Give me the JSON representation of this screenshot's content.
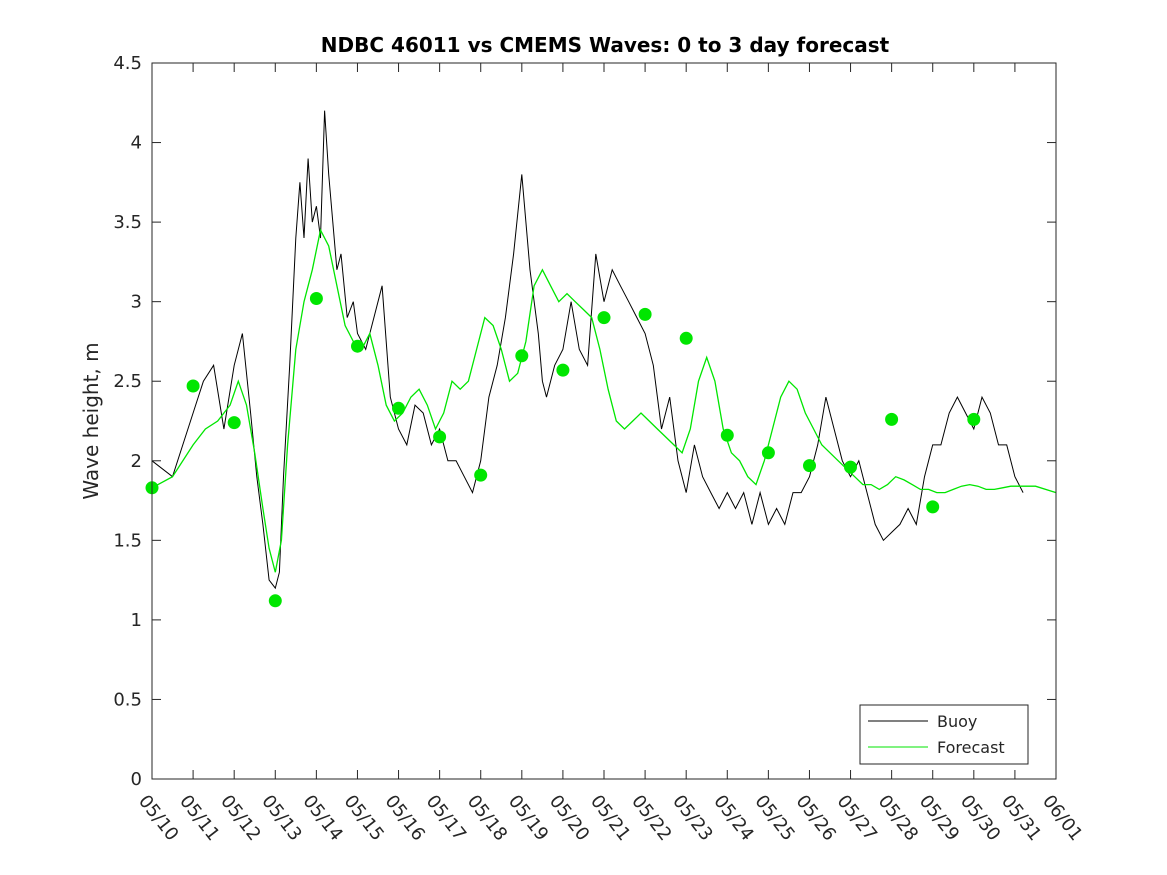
{
  "chart_data": {
    "type": "line",
    "title": "NDBC 46011 vs CMEMS Waves: 0 to 3 day forecast",
    "xlabel": "",
    "ylabel": "Wave height, m",
    "xlim": [
      "05/10",
      "06/01"
    ],
    "ylim": [
      0,
      4.5
    ],
    "x_tick_labels": [
      "05/10",
      "05/11",
      "05/12",
      "05/13",
      "05/14",
      "05/15",
      "05/16",
      "05/17",
      "05/18",
      "05/19",
      "05/20",
      "05/21",
      "05/22",
      "05/23",
      "05/24",
      "05/25",
      "05/26",
      "05/27",
      "05/28",
      "05/29",
      "05/30",
      "05/31",
      "06/01"
    ],
    "y_tick_values": [
      0,
      0.5,
      1,
      1.5,
      2,
      2.5,
      3,
      3.5,
      4,
      4.5
    ],
    "y_tick_labels": [
      "0",
      "0.5",
      "1",
      "1.5",
      "2",
      "2.5",
      "3",
      "3.5",
      "4",
      "4.5"
    ],
    "grid": false,
    "legend_position": "bottom-right",
    "colors": {
      "buoy": "#000000",
      "forecast": "#00e600",
      "axis": "#262626"
    },
    "series": [
      {
        "name": "Buoy",
        "x_days": [
          0,
          0.5,
          1,
          1.25,
          1.5,
          1.75,
          2,
          2.2,
          2.4,
          2.55,
          2.7,
          2.85,
          3,
          3.1,
          3.2,
          3.35,
          3.5,
          3.6,
          3.7,
          3.8,
          3.9,
          4.0,
          4.1,
          4.2,
          4.3,
          4.4,
          4.5,
          4.6,
          4.75,
          4.9,
          5.0,
          5.2,
          5.4,
          5.6,
          5.8,
          6.0,
          6.2,
          6.4,
          6.6,
          6.8,
          7.0,
          7.2,
          7.4,
          7.6,
          7.8,
          8.0,
          8.2,
          8.4,
          8.6,
          8.8,
          9.0,
          9.2,
          9.4,
          9.5,
          9.6,
          9.8,
          10.0,
          10.2,
          10.4,
          10.6,
          10.8,
          11.0,
          11.2,
          11.4,
          11.6,
          11.8,
          12.0,
          12.2,
          12.4,
          12.6,
          12.8,
          13.0,
          13.2,
          13.4,
          13.6,
          13.8,
          14.0,
          14.2,
          14.4,
          14.6,
          14.8,
          15.0,
          15.2,
          15.4,
          15.6,
          15.8,
          16.0,
          16.2,
          16.4,
          16.6,
          16.8,
          17.0,
          17.2,
          17.4,
          17.6,
          17.8,
          18.0,
          18.2,
          18.4,
          18.6,
          18.8,
          19.0,
          19.2,
          19.4,
          19.6,
          19.8,
          20.0,
          20.2,
          20.4,
          20.6,
          20.8,
          21.0,
          21.2
        ],
        "values": [
          2.0,
          1.9,
          2.3,
          2.5,
          2.6,
          2.2,
          2.6,
          2.8,
          2.3,
          1.9,
          1.6,
          1.25,
          1.2,
          1.3,
          1.9,
          2.6,
          3.4,
          3.75,
          3.4,
          3.9,
          3.5,
          3.6,
          3.4,
          4.2,
          3.8,
          3.5,
          3.2,
          3.3,
          2.9,
          3.0,
          2.8,
          2.7,
          2.9,
          3.1,
          2.4,
          2.2,
          2.1,
          2.35,
          2.3,
          2.1,
          2.2,
          2.0,
          2.0,
          1.9,
          1.8,
          2.0,
          2.4,
          2.6,
          2.9,
          3.3,
          3.8,
          3.2,
          2.8,
          2.5,
          2.4,
          2.6,
          2.7,
          3.0,
          2.7,
          2.6,
          3.3,
          3.0,
          3.2,
          3.1,
          3.0,
          2.9,
          2.8,
          2.6,
          2.2,
          2.4,
          2.0,
          1.8,
          2.1,
          1.9,
          1.8,
          1.7,
          1.8,
          1.7,
          1.8,
          1.6,
          1.8,
          1.6,
          1.7,
          1.6,
          1.8,
          1.8,
          1.9,
          2.1,
          2.4,
          2.2,
          2.0,
          1.9,
          2.0,
          1.8,
          1.6,
          1.5,
          1.55,
          1.6,
          1.7,
          1.6,
          1.9,
          2.1,
          2.1,
          2.3,
          2.4,
          2.3,
          2.2,
          2.4,
          2.3,
          2.1,
          2.1,
          1.9,
          1.8
        ]
      },
      {
        "name": "Forecast",
        "x_days": [
          0,
          0.5,
          1,
          1.3,
          1.6,
          1.9,
          2.1,
          2.3,
          2.5,
          2.7,
          2.85,
          3.0,
          3.15,
          3.3,
          3.5,
          3.7,
          3.9,
          4.1,
          4.3,
          4.5,
          4.7,
          4.9,
          5.1,
          5.3,
          5.5,
          5.7,
          5.9,
          6.1,
          6.3,
          6.5,
          6.7,
          6.9,
          7.1,
          7.3,
          7.5,
          7.7,
          7.9,
          8.1,
          8.3,
          8.5,
          8.7,
          8.9,
          9.1,
          9.3,
          9.5,
          9.7,
          9.9,
          10.1,
          10.3,
          10.5,
          10.7,
          10.9,
          11.1,
          11.3,
          11.5,
          11.7,
          11.9,
          12.1,
          12.3,
          12.5,
          12.7,
          12.9,
          13.1,
          13.3,
          13.5,
          13.7,
          13.9,
          14.1,
          14.3,
          14.5,
          14.7,
          14.9,
          15.1,
          15.3,
          15.5,
          15.7,
          15.9,
          16.1,
          16.3,
          16.5,
          16.7,
          16.9,
          17.1,
          17.3,
          17.5,
          17.7,
          17.9,
          18.1,
          18.3,
          18.5,
          18.7,
          18.9,
          19.1,
          19.3,
          19.5,
          19.7,
          19.9,
          20.1,
          20.3,
          20.5,
          20.7,
          20.9,
          21.1,
          21.5,
          22.0
        ],
        "values": [
          1.83,
          1.9,
          2.1,
          2.2,
          2.25,
          2.35,
          2.5,
          2.35,
          2.05,
          1.7,
          1.45,
          1.3,
          1.5,
          2.1,
          2.7,
          3.0,
          3.2,
          3.45,
          3.35,
          3.1,
          2.85,
          2.75,
          2.7,
          2.8,
          2.6,
          2.35,
          2.25,
          2.3,
          2.4,
          2.45,
          2.35,
          2.2,
          2.3,
          2.5,
          2.45,
          2.5,
          2.7,
          2.9,
          2.85,
          2.7,
          2.5,
          2.55,
          2.75,
          3.1,
          3.2,
          3.1,
          3.0,
          3.05,
          3.0,
          2.95,
          2.9,
          2.7,
          2.45,
          2.25,
          2.2,
          2.25,
          2.3,
          2.25,
          2.2,
          2.15,
          2.1,
          2.05,
          2.2,
          2.5,
          2.65,
          2.5,
          2.2,
          2.05,
          2.0,
          1.9,
          1.85,
          2.0,
          2.2,
          2.4,
          2.5,
          2.45,
          2.3,
          2.2,
          2.1,
          2.05,
          2.0,
          1.95,
          1.9,
          1.85,
          1.85,
          1.82,
          1.85,
          1.9,
          1.88,
          1.85,
          1.82,
          1.82,
          1.8,
          1.8,
          1.82,
          1.84,
          1.85,
          1.84,
          1.82,
          1.82,
          1.83,
          1.84,
          1.84,
          1.84,
          1.8
        ]
      },
      {
        "name": "",
        "type": "scatter",
        "x_days": [
          0,
          1,
          2,
          3,
          4,
          5,
          6,
          7,
          8,
          9,
          10,
          11,
          12,
          13,
          14,
          15,
          16,
          17,
          18,
          19,
          20
        ],
        "values": [
          1.83,
          2.47,
          2.24,
          1.12,
          3.02,
          2.72,
          2.33,
          2.15,
          1.91,
          2.66,
          2.57,
          2.9,
          2.92,
          2.77,
          2.16,
          2.05,
          1.97,
          1.96,
          2.26,
          1.71,
          2.26
        ]
      }
    ]
  }
}
